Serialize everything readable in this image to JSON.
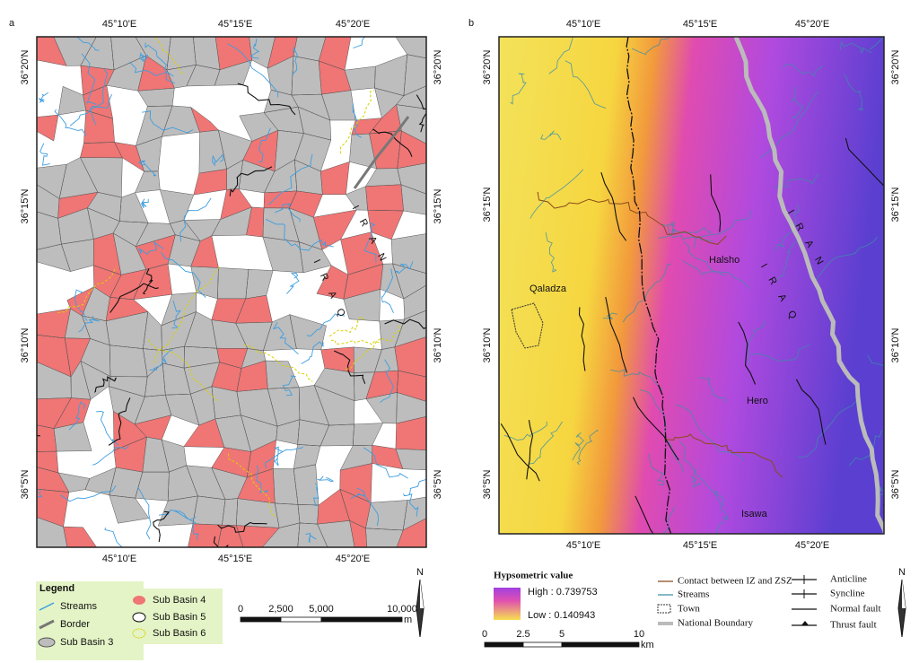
{
  "panels": [
    {
      "label": "a",
      "lon_labels": [
        "45°10'E",
        "45°15'E",
        "45°20'E"
      ],
      "lat_labels": [
        "36°20'N",
        "36°15'N",
        "36°10'N",
        "36°5'N"
      ],
      "country_labels": [
        "IRAN",
        "IRAQ"
      ],
      "legend": {
        "title": "Legend",
        "items": [
          "Streams",
          "Border",
          "Sub Basin 3",
          "Sub Basin 4",
          "Sub Basin 5",
          "Sub Basin 6"
        ]
      },
      "scale": {
        "ticks": [
          "0",
          "2,500",
          "5,000",
          "10,000"
        ],
        "unit": "m"
      },
      "north": "N"
    },
    {
      "label": "b",
      "lon_labels": [
        "45°10'E",
        "45°15'E",
        "45°20'E"
      ],
      "lat_labels": [
        "36°20'N",
        "36°15'N",
        "36°10'N",
        "36°5'N"
      ],
      "country_labels": [
        "IRAN",
        "IRAQ"
      ],
      "towns": [
        "Halsho",
        "Qaladza",
        "Hero",
        "Isawa"
      ],
      "legend": {
        "title": "Hypsometric value",
        "high": "High : 0.739753",
        "low": "Low : 0.140943",
        "items": [
          "Contact between IZ and ZSZ",
          "Streams",
          "Town",
          "National Boundary",
          "Anticline",
          "Syncline",
          "Normal fault",
          "Thrust fault"
        ]
      },
      "scale": {
        "ticks": [
          "0",
          "2.5",
          "5",
          "10"
        ],
        "unit": "km"
      },
      "north": "N"
    }
  ]
}
